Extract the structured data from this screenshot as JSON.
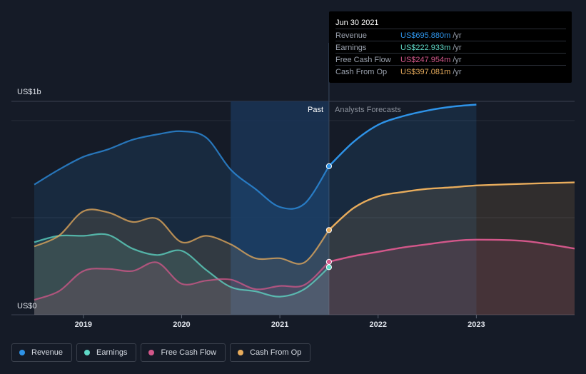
{
  "tooltip": {
    "date": "Jun 30 2021",
    "rows": [
      {
        "label": "Revenue",
        "value": "US$695.880m",
        "unit": "/yr",
        "color": "#2e93e8"
      },
      {
        "label": "Earnings",
        "value": "US$222.933m",
        "unit": "/yr",
        "color": "#5fd9c7"
      },
      {
        "label": "Free Cash Flow",
        "value": "US$247.954m",
        "unit": "/yr",
        "color": "#d3578a"
      },
      {
        "label": "Cash From Op",
        "value": "US$397.081m",
        "unit": "/yr",
        "color": "#e8ac5c"
      }
    ]
  },
  "legend": [
    {
      "label": "Revenue",
      "color": "#2e93e8"
    },
    {
      "label": "Earnings",
      "color": "#5fd9c7"
    },
    {
      "label": "Free Cash Flow",
      "color": "#d3578a"
    },
    {
      "label": "Cash From Op",
      "color": "#e8ac5c"
    }
  ],
  "chart_data": {
    "type": "area",
    "title": "",
    "y_axis_labels": [
      "US$1b",
      "US$0"
    ],
    "ylim": [
      0,
      1000
    ],
    "xlim": [
      2018.5,
      2024.0
    ],
    "x_ticks": [
      2019,
      2020,
      2021,
      2022,
      2023
    ],
    "x_tick_labels": [
      "2019",
      "2020",
      "2021",
      "2022",
      "2023"
    ],
    "past_label": "Past",
    "forecast_label": "Analysts Forecasts",
    "past_region": [
      2020.5,
      2021.5
    ],
    "divider_x": 2021.5,
    "grid": true,
    "series": [
      {
        "name": "Revenue",
        "color": "#2e93e8",
        "past": [
          [
            2018.5,
            610
          ],
          [
            2018.75,
            680
          ],
          [
            2019.0,
            740
          ],
          [
            2019.25,
            775
          ],
          [
            2019.5,
            820
          ],
          [
            2019.75,
            845
          ],
          [
            2020.0,
            860
          ],
          [
            2020.25,
            830
          ],
          [
            2020.5,
            680
          ],
          [
            2020.75,
            590
          ],
          [
            2021.0,
            505
          ],
          [
            2021.25,
            520
          ],
          [
            2021.5,
            696
          ]
        ],
        "forecast": [
          [
            2021.5,
            696
          ],
          [
            2021.75,
            810
          ],
          [
            2022.0,
            890
          ],
          [
            2022.25,
            930
          ],
          [
            2022.5,
            957
          ],
          [
            2022.75,
            975
          ],
          [
            2023.0,
            985
          ]
        ]
      },
      {
        "name": "Earnings",
        "color": "#5fd9c7",
        "past": [
          [
            2018.5,
            340
          ],
          [
            2018.75,
            370
          ],
          [
            2019.0,
            370
          ],
          [
            2019.25,
            375
          ],
          [
            2019.5,
            310
          ],
          [
            2019.75,
            280
          ],
          [
            2020.0,
            300
          ],
          [
            2020.25,
            210
          ],
          [
            2020.5,
            130
          ],
          [
            2020.75,
            110
          ],
          [
            2021.0,
            85
          ],
          [
            2021.25,
            120
          ],
          [
            2021.5,
            223
          ]
        ],
        "forecast": []
      },
      {
        "name": "Free Cash Flow",
        "color": "#d3578a",
        "past": [
          [
            2018.5,
            70
          ],
          [
            2018.75,
            110
          ],
          [
            2019.0,
            205
          ],
          [
            2019.25,
            215
          ],
          [
            2019.5,
            205
          ],
          [
            2019.75,
            245
          ],
          [
            2020.0,
            145
          ],
          [
            2020.25,
            160
          ],
          [
            2020.5,
            165
          ],
          [
            2020.75,
            120
          ],
          [
            2021.0,
            135
          ],
          [
            2021.25,
            140
          ],
          [
            2021.5,
            248
          ]
        ],
        "forecast": [
          [
            2021.5,
            248
          ],
          [
            2021.75,
            275
          ],
          [
            2022.0,
            295
          ],
          [
            2022.25,
            315
          ],
          [
            2022.5,
            330
          ],
          [
            2022.75,
            345
          ],
          [
            2023.0,
            352
          ],
          [
            2023.5,
            345
          ],
          [
            2024.0,
            310
          ]
        ]
      },
      {
        "name": "Cash From Op",
        "color": "#e8ac5c",
        "past": [
          [
            2018.5,
            320
          ],
          [
            2018.75,
            370
          ],
          [
            2019.0,
            485
          ],
          [
            2019.25,
            480
          ],
          [
            2019.5,
            435
          ],
          [
            2019.75,
            450
          ],
          [
            2020.0,
            340
          ],
          [
            2020.25,
            370
          ],
          [
            2020.5,
            330
          ],
          [
            2020.75,
            265
          ],
          [
            2021.0,
            265
          ],
          [
            2021.25,
            245
          ],
          [
            2021.5,
            397
          ]
        ],
        "forecast": [
          [
            2021.5,
            397
          ],
          [
            2021.75,
            500
          ],
          [
            2022.0,
            555
          ],
          [
            2022.25,
            575
          ],
          [
            2022.5,
            590
          ],
          [
            2022.75,
            597
          ],
          [
            2023.0,
            606
          ],
          [
            2023.5,
            614
          ],
          [
            2024.0,
            620
          ]
        ]
      }
    ]
  }
}
